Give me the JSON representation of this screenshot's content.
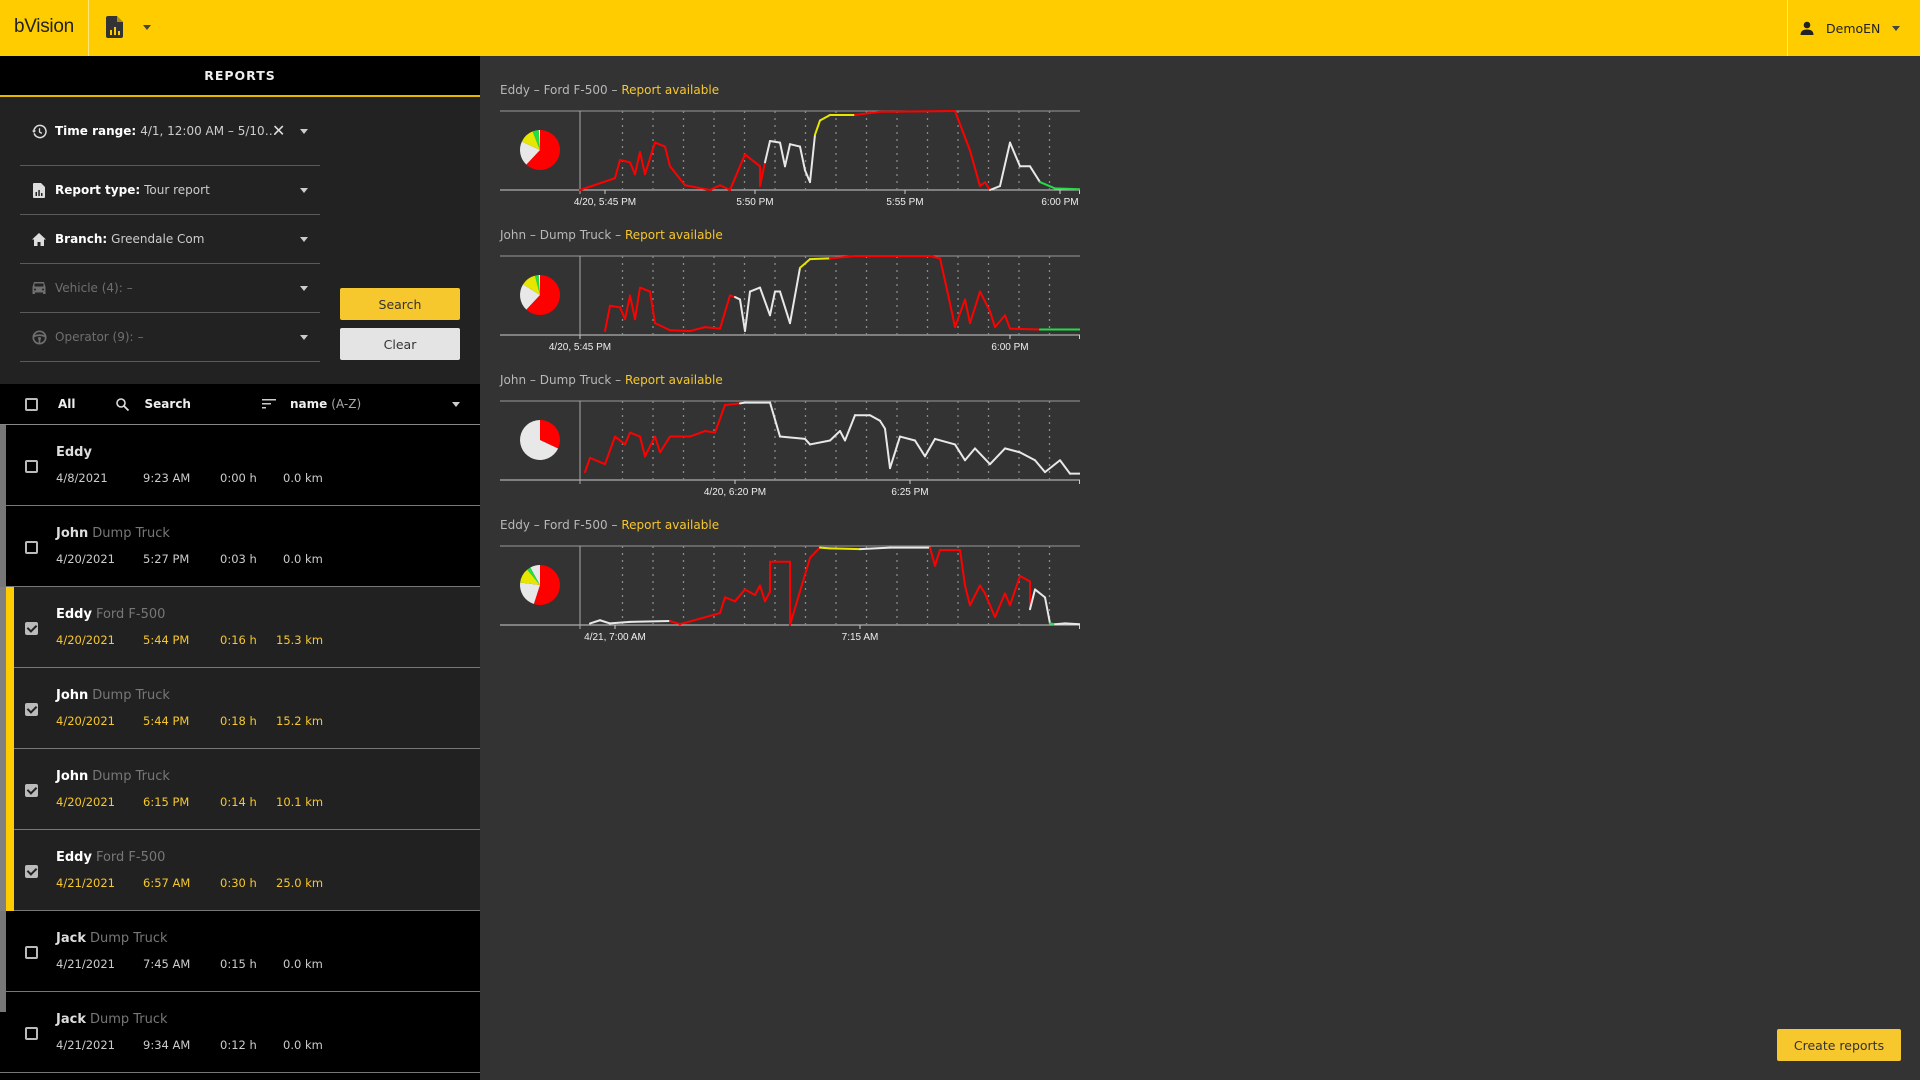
{
  "header": {
    "logo": "bVision",
    "report_icon": "report-chart-icon",
    "user": "DemoEN",
    "colors": {
      "brand": "#FFCC00"
    }
  },
  "sidebar": {
    "title": "REPORTS",
    "filters": [
      {
        "icon": "history-icon",
        "label": "Time range:",
        "value": "4/1, 12:00 AM – 5/10, 1…",
        "clearable": true,
        "enabled": true
      },
      {
        "icon": "report-icon",
        "label": "Report type:",
        "value": "Tour report",
        "enabled": true
      },
      {
        "icon": "home-icon",
        "label": "Branch:",
        "value": "Greendale Com",
        "enabled": true
      },
      {
        "icon": "car-icon",
        "label": "Vehicle (4):",
        "value": "–",
        "enabled": false
      },
      {
        "icon": "steering-wheel-icon",
        "label": "Operator (9):",
        "value": "–",
        "enabled": false
      }
    ],
    "search_label": "Search",
    "clear_label": "Clear",
    "list_header": {
      "all_label": "All",
      "search_label": "Search",
      "sort_field": "name",
      "sort_order": "(A-Z)"
    },
    "rows": [
      {
        "name": "Eddy",
        "vehicle": "",
        "date": "4/8/2021",
        "time": "9:23 AM",
        "duration": "0:00 h",
        "distance": "0.0 km",
        "selected": false
      },
      {
        "name": "John",
        "vehicle": "Dump Truck",
        "date": "4/20/2021",
        "time": "5:27 PM",
        "duration": "0:03 h",
        "distance": "0.0 km",
        "selected": false
      },
      {
        "name": "Eddy",
        "vehicle": "Ford F-500",
        "date": "4/20/2021",
        "time": "5:44 PM",
        "duration": "0:16 h",
        "distance": "15.3 km",
        "selected": true
      },
      {
        "name": "John",
        "vehicle": "Dump Truck",
        "date": "4/20/2021",
        "time": "5:44 PM",
        "duration": "0:18 h",
        "distance": "15.2 km",
        "selected": true
      },
      {
        "name": "John",
        "vehicle": "Dump Truck",
        "date": "4/20/2021",
        "time": "6:15 PM",
        "duration": "0:14 h",
        "distance": "10.1 km",
        "selected": true
      },
      {
        "name": "Eddy",
        "vehicle": "Ford F-500",
        "date": "4/21/2021",
        "time": "6:57 AM",
        "duration": "0:30 h",
        "distance": "25.0 km",
        "selected": true
      },
      {
        "name": "Jack",
        "vehicle": "Dump Truck",
        "date": "4/21/2021",
        "time": "7:45 AM",
        "duration": "0:15 h",
        "distance": "0.0 km",
        "selected": false
      },
      {
        "name": "Jack",
        "vehicle": "Dump Truck",
        "date": "4/21/2021",
        "time": "9:34 AM",
        "duration": "0:12 h",
        "distance": "0.0 km",
        "selected": false
      }
    ]
  },
  "main": {
    "create_label": "Create reports",
    "charts": [
      {
        "operator": "Eddy",
        "vehicle": "Ford F-500",
        "sep": " – ",
        "status": "Report available"
      },
      {
        "operator": "John",
        "vehicle": "Dump Truck",
        "sep": " – ",
        "status": "Report available"
      },
      {
        "operator": "John",
        "vehicle": "Dump Truck",
        "sep": " – ",
        "status": "Report available"
      },
      {
        "operator": "Eddy",
        "vehicle": "Ford F-500",
        "sep": " – ",
        "status": "Report available"
      }
    ]
  },
  "chart_data": [
    {
      "type": "line",
      "title": "Eddy – Ford F-500 – Report available",
      "x_ticks": [
        "4/20, 5:45 PM",
        "5:50 PM",
        "5:55 PM",
        "6:00 PM"
      ],
      "tick_pos": [
        0.05,
        0.35,
        0.65,
        0.96
      ],
      "grid": "dotted vertical, every 1 min",
      "series_colors": {
        "red": "#FF0000",
        "white": "#E8E8E8",
        "yellow": "#E6E600",
        "green": "#22DD44"
      },
      "pie": [
        {
          "color": "#FF0000",
          "value": 62
        },
        {
          "color": "#E8E8E8",
          "value": 20
        },
        {
          "color": "#E6E600",
          "value": 12
        },
        {
          "color": "#22DD44",
          "value": 5
        },
        {
          "color": "#FFFFFF",
          "value": 1
        }
      ],
      "points": [
        [
          0,
          0
        ],
        [
          0.07,
          0.15
        ],
        [
          0.08,
          0.38
        ],
        [
          0.1,
          0.35
        ],
        [
          0.11,
          0.2
        ],
        [
          0.12,
          0.48
        ],
        [
          0.13,
          0.2
        ],
        [
          0.15,
          0.6
        ],
        [
          0.17,
          0.55
        ],
        [
          0.18,
          0.3
        ],
        [
          0.21,
          0.06
        ],
        [
          0.26,
          0
        ],
        [
          0.28,
          0.06
        ],
        [
          0.3,
          0
        ],
        [
          0.33,
          0.45
        ],
        [
          0.36,
          0.3
        ],
        [
          0.36,
          0.05
        ],
        [
          0.37,
          0.35
        ],
        [
          0.38,
          0.62,
          "w"
        ],
        [
          0.4,
          0.6,
          "w"
        ],
        [
          0.41,
          0.3,
          "w"
        ],
        [
          0.42,
          0.58,
          "w"
        ],
        [
          0.44,
          0.55,
          "w"
        ],
        [
          0.45,
          0.25,
          "w"
        ],
        [
          0.46,
          0.1,
          "w"
        ],
        [
          0.47,
          0.7,
          "w"
        ],
        [
          0.48,
          0.88,
          "y"
        ],
        [
          0.5,
          0.95,
          "y"
        ],
        [
          0.55,
          0.95,
          "y"
        ],
        [
          0.6,
          0.99
        ],
        [
          0.75,
          1
        ],
        [
          0.78,
          0.5
        ],
        [
          0.8,
          0.05
        ],
        [
          0.81,
          0.1
        ],
        [
          0.82,
          0
        ],
        [
          0.84,
          0.05,
          "w"
        ],
        [
          0.86,
          0.6,
          "w"
        ],
        [
          0.88,
          0.3,
          "w"
        ],
        [
          0.9,
          0.3,
          "w"
        ],
        [
          0.92,
          0.1,
          "w"
        ],
        [
          0.95,
          0.02,
          "g"
        ],
        [
          1,
          0.01,
          "g"
        ]
      ]
    },
    {
      "type": "line",
      "title": "John – Dump Truck – Report available",
      "x_ticks": [
        "4/20, 5:45 PM",
        "6:00 PM"
      ],
      "tick_pos": [
        0.0,
        0.86
      ],
      "pie": [
        {
          "color": "#FF0000",
          "value": 62
        },
        {
          "color": "#E8E8E8",
          "value": 22
        },
        {
          "color": "#E6E600",
          "value": 12
        },
        {
          "color": "#22DD44",
          "value": 3
        },
        {
          "color": "#FFFFFF",
          "value": 1
        }
      ],
      "points": [
        [
          0.05,
          0.05
        ],
        [
          0.06,
          0.37
        ],
        [
          0.08,
          0.35
        ],
        [
          0.09,
          0.2
        ],
        [
          0.1,
          0.5
        ],
        [
          0.11,
          0.2
        ],
        [
          0.12,
          0.6
        ],
        [
          0.14,
          0.55
        ],
        [
          0.15,
          0.15
        ],
        [
          0.18,
          0.06
        ],
        [
          0.22,
          0.05
        ],
        [
          0.25,
          0.1
        ],
        [
          0.28,
          0.08
        ],
        [
          0.3,
          0.5
        ],
        [
          0.31,
          0.48
        ],
        [
          0.32,
          0.45,
          "w"
        ],
        [
          0.33,
          0.05,
          "w"
        ],
        [
          0.34,
          0.55,
          "w"
        ],
        [
          0.36,
          0.6,
          "w"
        ],
        [
          0.38,
          0.25,
          "w"
        ],
        [
          0.39,
          0.55,
          "w"
        ],
        [
          0.4,
          0.55,
          "w"
        ],
        [
          0.42,
          0.15,
          "w"
        ],
        [
          0.44,
          0.85,
          "w"
        ],
        [
          0.46,
          0.96,
          "y"
        ],
        [
          0.5,
          0.97,
          "y"
        ],
        [
          0.55,
          1
        ],
        [
          0.7,
          1
        ],
        [
          0.72,
          0.97
        ],
        [
          0.74,
          0.4
        ],
        [
          0.75,
          0.1
        ],
        [
          0.77,
          0.45
        ],
        [
          0.78,
          0.15
        ],
        [
          0.8,
          0.55
        ],
        [
          0.82,
          0.3
        ],
        [
          0.83,
          0.1
        ],
        [
          0.85,
          0.25
        ],
        [
          0.86,
          0.08
        ],
        [
          0.92,
          0.07
        ],
        [
          0.95,
          0.07,
          "g"
        ],
        [
          1,
          0.07,
          "g"
        ]
      ]
    },
    {
      "type": "line",
      "title": "John – Dump Truck – Report available",
      "x_ticks": [
        "4/20, 6:20 PM",
        "6:25 PM"
      ],
      "tick_pos": [
        0.31,
        0.66
      ],
      "pie": [
        {
          "color": "#FF0000",
          "value": 32
        },
        {
          "color": "#E8E8E8",
          "value": 68
        }
      ],
      "points": [
        [
          0.01,
          0.1
        ],
        [
          0.02,
          0.28
        ],
        [
          0.05,
          0.2
        ],
        [
          0.07,
          0.55
        ],
        [
          0.09,
          0.45
        ],
        [
          0.1,
          0.6
        ],
        [
          0.12,
          0.55
        ],
        [
          0.13,
          0.3
        ],
        [
          0.15,
          0.55
        ],
        [
          0.16,
          0.35
        ],
        [
          0.18,
          0.55
        ],
        [
          0.22,
          0.55
        ],
        [
          0.25,
          0.62
        ],
        [
          0.27,
          0.6
        ],
        [
          0.29,
          0.95
        ],
        [
          0.32,
          0.97
        ],
        [
          0.33,
          0.98,
          "w"
        ],
        [
          0.38,
          0.98,
          "w"
        ],
        [
          0.4,
          0.55,
          "w"
        ],
        [
          0.45,
          0.52,
          "w"
        ],
        [
          0.46,
          0.45,
          "w"
        ],
        [
          0.5,
          0.5,
          "w"
        ],
        [
          0.52,
          0.62,
          "w"
        ],
        [
          0.53,
          0.5,
          "w"
        ],
        [
          0.55,
          0.82,
          "w"
        ],
        [
          0.58,
          0.82,
          "w"
        ],
        [
          0.6,
          0.75,
          "w"
        ],
        [
          0.61,
          0.65,
          "w"
        ],
        [
          0.62,
          0.15,
          "w"
        ],
        [
          0.64,
          0.55,
          "w"
        ],
        [
          0.67,
          0.5,
          "w"
        ],
        [
          0.69,
          0.3,
          "w"
        ],
        [
          0.71,
          0.52,
          "w"
        ],
        [
          0.75,
          0.45,
          "w"
        ],
        [
          0.77,
          0.25,
          "w"
        ],
        [
          0.79,
          0.4,
          "w"
        ],
        [
          0.82,
          0.2,
          "w"
        ],
        [
          0.85,
          0.4,
          "w"
        ],
        [
          0.88,
          0.35,
          "w"
        ],
        [
          0.91,
          0.25,
          "w"
        ],
        [
          0.93,
          0.1,
          "w"
        ],
        [
          0.96,
          0.25,
          "w"
        ],
        [
          0.98,
          0.08,
          "w"
        ],
        [
          1,
          0.08,
          "w"
        ]
      ]
    },
    {
      "type": "line",
      "title": "Eddy – Ford F-500 – Report available",
      "x_ticks": [
        "4/21, 7:00 AM",
        "7:15 AM"
      ],
      "tick_pos": [
        0.07,
        0.56
      ],
      "pie": [
        {
          "color": "#FF0000",
          "value": 55
        },
        {
          "color": "#E8E8E8",
          "value": 22
        },
        {
          "color": "#E6E600",
          "value": 12
        },
        {
          "color": "#22DD44",
          "value": 3
        },
        {
          "color": "#E8E8E8",
          "value": 8
        }
      ],
      "points": [
        [
          0.02,
          0.02,
          "w"
        ],
        [
          0.04,
          0.06,
          "w"
        ],
        [
          0.06,
          0.02,
          "w"
        ],
        [
          0.1,
          0.04,
          "w"
        ],
        [
          0.18,
          0.05,
          "w"
        ],
        [
          0.2,
          0.01
        ],
        [
          0.28,
          0.15
        ],
        [
          0.29,
          0.35
        ],
        [
          0.31,
          0.3
        ],
        [
          0.33,
          0.45
        ],
        [
          0.35,
          0.38
        ],
        [
          0.36,
          0.5
        ],
        [
          0.37,
          0.3
        ],
        [
          0.38,
          0.42
        ],
        [
          0.38,
          0.8
        ],
        [
          0.42,
          0.8
        ],
        [
          0.42,
          0
        ],
        [
          0.46,
          0.85
        ],
        [
          0.48,
          0.98
        ],
        [
          0.5,
          0.97,
          "y"
        ],
        [
          0.56,
          0.96,
          "y"
        ],
        [
          0.62,
          0.98,
          "w"
        ],
        [
          0.7,
          0.98,
          "w"
        ],
        [
          0.71,
          0.75
        ],
        [
          0.72,
          0.95
        ],
        [
          0.76,
          0.95
        ],
        [
          0.77,
          0.5
        ],
        [
          0.78,
          0.25
        ],
        [
          0.8,
          0.5
        ],
        [
          0.81,
          0.4
        ],
        [
          0.83,
          0.1
        ],
        [
          0.85,
          0.4
        ],
        [
          0.86,
          0.25
        ],
        [
          0.88,
          0.62
        ],
        [
          0.9,
          0.55
        ],
        [
          0.9,
          0.2
        ],
        [
          0.91,
          0.45,
          "w"
        ],
        [
          0.93,
          0.35,
          "w"
        ],
        [
          0.94,
          0.02,
          "w"
        ],
        [
          0.95,
          0.01,
          "g"
        ],
        [
          0.97,
          0.02,
          "w"
        ],
        [
          1,
          0.01,
          "w"
        ]
      ]
    }
  ]
}
